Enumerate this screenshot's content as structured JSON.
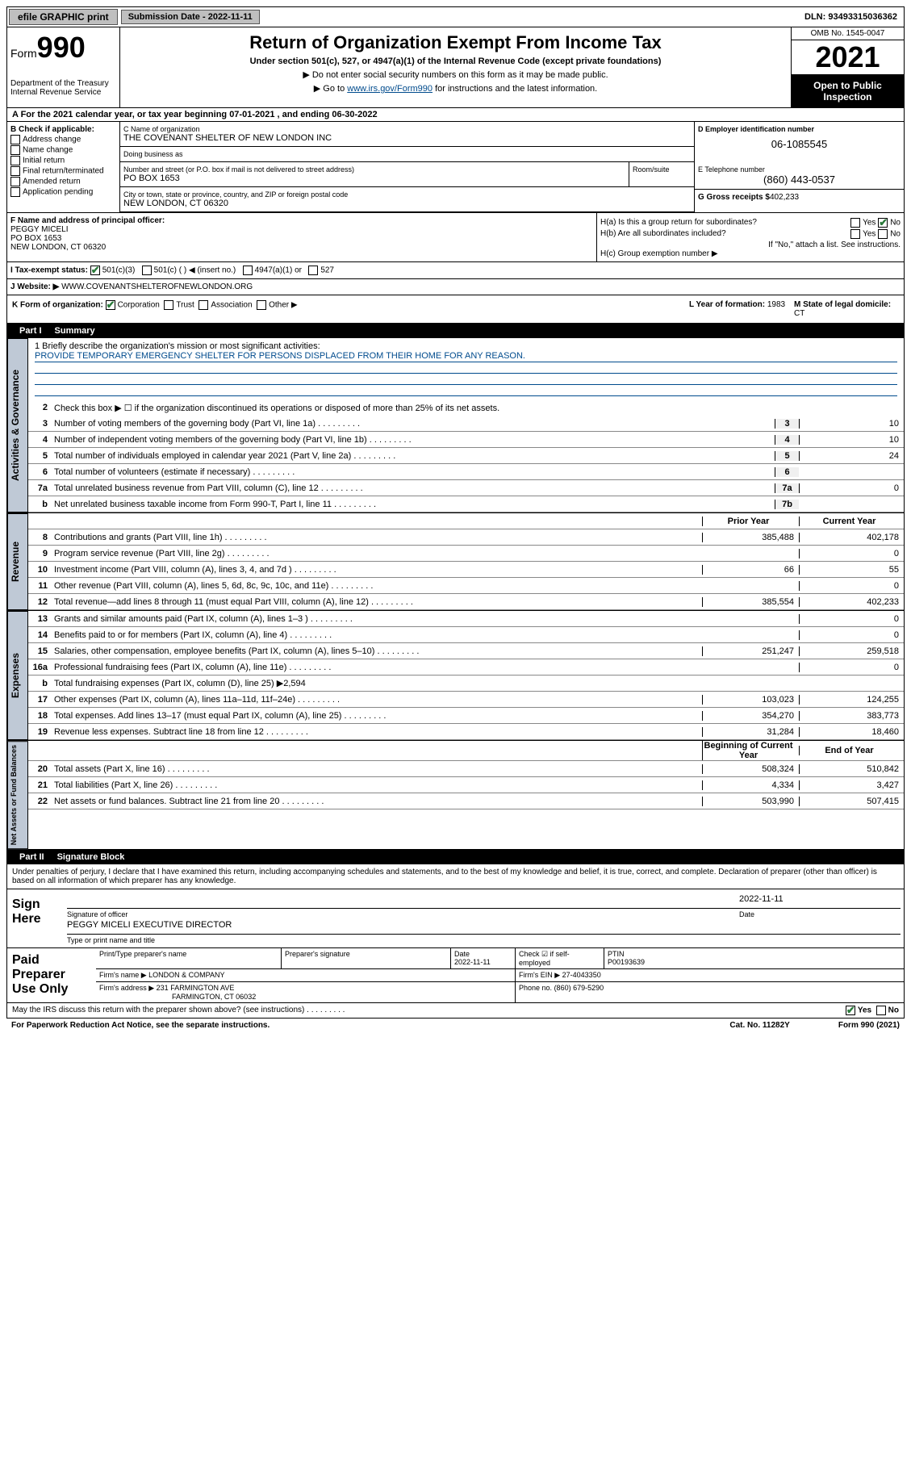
{
  "topbar": {
    "efile": "efile GRAPHIC print",
    "subdate_lbl": "Submission Date - 2022-11-11",
    "dln": "DLN: 93493315036362"
  },
  "header": {
    "form_lbl": "Form",
    "form_num": "990",
    "dept": "Department of the Treasury",
    "irs": "Internal Revenue Service",
    "title": "Return of Organization Exempt From Income Tax",
    "sub": "Under section 501(c), 527, or 4947(a)(1) of the Internal Revenue Code (except private foundations)",
    "note1": "▶ Do not enter social security numbers on this form as it may be made public.",
    "note2_pre": "▶ Go to ",
    "note2_link": "www.irs.gov/Form990",
    "note2_post": " for instructions and the latest information.",
    "omb": "OMB No. 1545-0047",
    "year": "2021",
    "openpub": "Open to Public Inspection"
  },
  "row_a": "A For the 2021 calendar year, or tax year beginning 07-01-2021  , and ending 06-30-2022",
  "col_b": {
    "lbl": "B Check if applicable:",
    "opts": [
      "Address change",
      "Name change",
      "Initial return",
      "Final return/terminated",
      "Amended return",
      "Application pending"
    ]
  },
  "col_c": {
    "name_lbl": "C Name of organization",
    "name": "THE COVENANT SHELTER OF NEW LONDON INC",
    "dba_lbl": "Doing business as",
    "dba": "",
    "addr_lbl": "Number and street (or P.O. box if mail is not delivered to street address)",
    "addr": "PO BOX 1653",
    "room_lbl": "Room/suite",
    "city_lbl": "City or town, state or province, country, and ZIP or foreign postal code",
    "city": "NEW LONDON, CT  06320"
  },
  "col_d": {
    "lbl": "D Employer identification number",
    "val": "06-1085545"
  },
  "col_e": {
    "tel_lbl": "E Telephone number",
    "tel": "(860) 443-0537",
    "gross_lbl": "G Gross receipts $",
    "gross": "402,233"
  },
  "col_f": {
    "lbl": "F Name and address of principal officer:",
    "name": "PEGGY MICELI",
    "addr": "PO BOX 1653",
    "city": "NEW LONDON, CT  06320"
  },
  "col_h": {
    "ha": "H(a)  Is this a group return for subordinates?",
    "hb": "H(b)  Are all subordinates included?",
    "hb_note": "If \"No,\" attach a list. See instructions.",
    "hc": "H(c)  Group exemption number ▶",
    "yes": "Yes",
    "no": "No"
  },
  "row_i": {
    "lbl": "I   Tax-exempt status:",
    "o1": "501(c)(3)",
    "o2": "501(c) (  ) ◀ (insert no.)",
    "o3": "4947(a)(1) or",
    "o4": "527"
  },
  "row_j": {
    "lbl": "J   Website: ▶",
    "val": "WWW.COVENANTSHELTEROFNEWLONDON.ORG"
  },
  "row_k": {
    "lbl": "K Form of organization:",
    "o1": "Corporation",
    "o2": "Trust",
    "o3": "Association",
    "o4": "Other ▶",
    "l_lbl": "L Year of formation:",
    "l_val": "1983",
    "m_lbl": "M State of legal domicile:",
    "m_val": "CT"
  },
  "part1": {
    "num": "Part I",
    "title": "Summary"
  },
  "mission": {
    "q1": "1   Briefly describe the organization's mission or most significant activities:",
    "text": "PROVIDE TEMPORARY EMERGENCY SHELTER FOR PERSONS DISPLACED FROM THEIR HOME FOR ANY REASON."
  },
  "gov": {
    "label": "Activities & Governance",
    "q2": "Check this box ▶ ☐  if the organization discontinued its operations or disposed of more than 25% of its net assets.",
    "rows": [
      {
        "n": "3",
        "d": "Number of voting members of the governing body (Part VI, line 1a)",
        "c": "3",
        "v": "10"
      },
      {
        "n": "4",
        "d": "Number of independent voting members of the governing body (Part VI, line 1b)",
        "c": "4",
        "v": "10"
      },
      {
        "n": "5",
        "d": "Total number of individuals employed in calendar year 2021 (Part V, line 2a)",
        "c": "5",
        "v": "24"
      },
      {
        "n": "6",
        "d": "Total number of volunteers (estimate if necessary)",
        "c": "6",
        "v": ""
      },
      {
        "n": "7a",
        "d": "Total unrelated business revenue from Part VIII, column (C), line 12",
        "c": "7a",
        "v": "0"
      },
      {
        "n": "b",
        "d": "Net unrelated business taxable income from Form 990-T, Part I, line 11",
        "c": "7b",
        "v": ""
      }
    ]
  },
  "rev": {
    "label": "Revenue",
    "hdr_prior": "Prior Year",
    "hdr_curr": "Current Year",
    "rows": [
      {
        "n": "8",
        "d": "Contributions and grants (Part VIII, line 1h)",
        "p": "385,488",
        "c": "402,178"
      },
      {
        "n": "9",
        "d": "Program service revenue (Part VIII, line 2g)",
        "p": "",
        "c": "0"
      },
      {
        "n": "10",
        "d": "Investment income (Part VIII, column (A), lines 3, 4, and 7d )",
        "p": "66",
        "c": "55"
      },
      {
        "n": "11",
        "d": "Other revenue (Part VIII, column (A), lines 5, 6d, 8c, 9c, 10c, and 11e)",
        "p": "",
        "c": "0"
      },
      {
        "n": "12",
        "d": "Total revenue—add lines 8 through 11 (must equal Part VIII, column (A), line 12)",
        "p": "385,554",
        "c": "402,233"
      }
    ]
  },
  "exp": {
    "label": "Expenses",
    "rows": [
      {
        "n": "13",
        "d": "Grants and similar amounts paid (Part IX, column (A), lines 1–3 )",
        "p": "",
        "c": "0"
      },
      {
        "n": "14",
        "d": "Benefits paid to or for members (Part IX, column (A), line 4)",
        "p": "",
        "c": "0"
      },
      {
        "n": "15",
        "d": "Salaries, other compensation, employee benefits (Part IX, column (A), lines 5–10)",
        "p": "251,247",
        "c": "259,518"
      },
      {
        "n": "16a",
        "d": "Professional fundraising fees (Part IX, column (A), line 11e)",
        "p": "",
        "c": "0"
      },
      {
        "n": "b",
        "d": "Total fundraising expenses (Part IX, column (D), line 25) ▶2,594",
        "p": "",
        "c": "",
        "gray": true
      },
      {
        "n": "17",
        "d": "Other expenses (Part IX, column (A), lines 11a–11d, 11f–24e)",
        "p": "103,023",
        "c": "124,255"
      },
      {
        "n": "18",
        "d": "Total expenses. Add lines 13–17 (must equal Part IX, column (A), line 25)",
        "p": "354,270",
        "c": "383,773"
      },
      {
        "n": "19",
        "d": "Revenue less expenses. Subtract line 18 from line 12",
        "p": "31,284",
        "c": "18,460"
      }
    ]
  },
  "net": {
    "label": "Net Assets or Fund Balances",
    "hdr_beg": "Beginning of Current Year",
    "hdr_end": "End of Year",
    "rows": [
      {
        "n": "20",
        "d": "Total assets (Part X, line 16)",
        "p": "508,324",
        "c": "510,842"
      },
      {
        "n": "21",
        "d": "Total liabilities (Part X, line 26)",
        "p": "4,334",
        "c": "3,427"
      },
      {
        "n": "22",
        "d": "Net assets or fund balances. Subtract line 21 from line 20",
        "p": "503,990",
        "c": "507,415"
      }
    ]
  },
  "part2": {
    "num": "Part II",
    "title": "Signature Block"
  },
  "penalties": "Under penalties of perjury, I declare that I have examined this return, including accompanying schedules and statements, and to the best of my knowledge and belief, it is true, correct, and complete. Declaration of preparer (other than officer) is based on all information of which preparer has any knowledge.",
  "sign": {
    "lbl": "Sign Here",
    "sig_lbl": "Signature of officer",
    "date_lbl": "Date",
    "date": "2022-11-11",
    "name": "PEGGY MICELI  EXECUTIVE DIRECTOR",
    "name_lbl": "Type or print name and title"
  },
  "prep": {
    "lbl": "Paid Preparer Use Only",
    "h1": "Print/Type preparer's name",
    "h2": "Preparer's signature",
    "h3": "Date",
    "h3v": "2022-11-11",
    "h4": "Check ☑ if self-employed",
    "h5": "PTIN",
    "h5v": "P00193639",
    "firm_lbl": "Firm's name    ▶",
    "firm": "LONDON & COMPANY",
    "ein_lbl": "Firm's EIN ▶",
    "ein": "27-4043350",
    "addr_lbl": "Firm's address ▶",
    "addr1": "231 FARMINGTON AVE",
    "addr2": "FARMINGTON, CT  06032",
    "phone_lbl": "Phone no.",
    "phone": "(860) 679-5290"
  },
  "footer": {
    "discuss": "May the IRS discuss this return with the preparer shown above? (see instructions)",
    "yes": "Yes",
    "no": "No",
    "paperwork": "For Paperwork Reduction Act Notice, see the separate instructions.",
    "cat": "Cat. No. 11282Y",
    "form": "Form 990 (2021)"
  }
}
